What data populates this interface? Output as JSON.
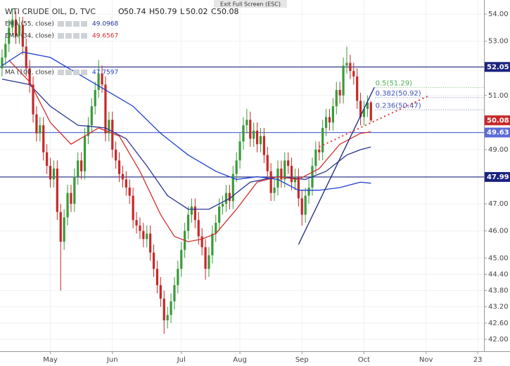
{
  "chart_data": {
    "type": "candlestick",
    "title": "WTI CRUDE OIL, D, TVC",
    "annotation": "Exit Full Screen (ESC)",
    "ohlc_header": [
      {
        "label": "O",
        "path": "open"
      },
      {
        "label": "H",
        "path": "high"
      },
      {
        "label": "L",
        "path": "low"
      },
      {
        "label": "C",
        "path": "close"
      }
    ],
    "up_color": "#3a9a3a",
    "down_color": "#c62828",
    "open": [
      52.0,
      52.4,
      52.9,
      53.5,
      53.8,
      53.2,
      53.6,
      52.8,
      52.0,
      51.4,
      50.3,
      49.6,
      49.9,
      48.9,
      48.4,
      47.9,
      48.3,
      46.7,
      45.6,
      46.5,
      47.4,
      47.0,
      48.0,
      48.6,
      48.2,
      49.5,
      49.9,
      50.6,
      51.2,
      51.8,
      51.4,
      49.6,
      50.1,
      49.0,
      48.6,
      48.1,
      47.9,
      47.6,
      47.3,
      46.4,
      46.2,
      46.0,
      45.7,
      45.9,
      45.2,
      44.6,
      44.0,
      43.5,
      42.7,
      42.9,
      43.4,
      44.0,
      44.6,
      45.3,
      46.0,
      46.6,
      46.9,
      46.4,
      45.8,
      45.4,
      44.6,
      45.1,
      45.9,
      46.3,
      46.9,
      47.0,
      47.4,
      47.1,
      48.1,
      48.6,
      49.3,
      49.9,
      50.1,
      49.4,
      49.7,
      49.2,
      49.5,
      48.8,
      48.2,
      47.4,
      47.6,
      48.3,
      47.9,
      48.6,
      48.4,
      47.8,
      48.0,
      47.2,
      46.6,
      47.3,
      47.6,
      48.4,
      49.0,
      48.9,
      49.8,
      50.2,
      50.0,
      50.6,
      51.2,
      51.0,
      52.1,
      52.2,
      51.9,
      51.7,
      50.8,
      50.2,
      50.5,
      50.74
    ],
    "high": [
      52.7,
      53.2,
      53.8,
      54.2,
      54.1,
      53.9,
      53.9,
      53.1,
      52.3,
      51.7,
      50.6,
      50.2,
      50.2,
      49.2,
      48.7,
      48.6,
      48.6,
      47.0,
      46.8,
      47.7,
      47.7,
      48.3,
      48.9,
      48.9,
      49.8,
      50.2,
      50.9,
      51.5,
      52.3,
      52.1,
      51.7,
      50.4,
      50.4,
      49.3,
      48.9,
      48.4,
      48.2,
      47.9,
      47.6,
      46.7,
      46.5,
      46.3,
      46.2,
      46.2,
      45.5,
      44.9,
      44.3,
      43.8,
      43.2,
      43.7,
      44.3,
      44.9,
      45.6,
      46.3,
      46.9,
      47.2,
      47.2,
      46.7,
      46.1,
      45.7,
      45.4,
      46.2,
      46.6,
      47.2,
      47.3,
      47.7,
      47.7,
      48.4,
      48.9,
      49.6,
      50.2,
      50.5,
      50.4,
      50.0,
      50.0,
      49.8,
      49.8,
      49.1,
      48.5,
      47.9,
      48.6,
      48.6,
      48.9,
      48.9,
      48.7,
      48.3,
      48.3,
      47.5,
      47.6,
      47.9,
      48.7,
      49.3,
      49.3,
      50.1,
      50.5,
      50.5,
      50.9,
      51.5,
      51.5,
      52.4,
      52.8,
      52.5,
      52.2,
      52.0,
      51.1,
      50.8,
      51.0,
      50.79
    ],
    "low": [
      51.7,
      52.1,
      52.6,
      53.2,
      52.9,
      52.9,
      52.5,
      51.7,
      51.1,
      50.0,
      49.3,
      49.3,
      48.6,
      48.1,
      47.6,
      47.6,
      46.4,
      43.8,
      45.3,
      46.2,
      46.7,
      46.7,
      47.7,
      47.9,
      47.9,
      49.2,
      49.6,
      50.3,
      50.9,
      51.1,
      49.3,
      49.3,
      48.7,
      48.3,
      47.8,
      47.6,
      47.3,
      47.0,
      46.1,
      45.9,
      45.7,
      45.4,
      45.4,
      44.9,
      44.3,
      43.7,
      43.2,
      42.2,
      42.4,
      42.6,
      43.1,
      43.7,
      44.3,
      45.0,
      45.7,
      46.3,
      46.1,
      45.5,
      45.1,
      44.2,
      44.3,
      44.8,
      45.6,
      46.0,
      46.6,
      46.7,
      46.8,
      46.8,
      47.8,
      48.3,
      49.0,
      49.6,
      49.1,
      49.1,
      48.9,
      48.9,
      48.5,
      47.9,
      47.1,
      47.1,
      47.3,
      47.6,
      47.6,
      48.1,
      47.5,
      47.5,
      46.9,
      46.2,
      46.3,
      47.0,
      47.3,
      48.1,
      48.6,
      48.6,
      49.5,
      49.7,
      49.7,
      50.3,
      50.7,
      50.7,
      51.8,
      51.6,
      51.4,
      50.5,
      49.9,
      49.9,
      50.2,
      50.02
    ],
    "close": [
      52.4,
      52.9,
      53.5,
      53.8,
      53.2,
      53.6,
      52.8,
      52.0,
      51.4,
      50.3,
      49.6,
      49.9,
      48.9,
      48.4,
      47.9,
      48.3,
      46.7,
      45.6,
      46.5,
      47.4,
      47.0,
      48.0,
      48.6,
      48.2,
      49.5,
      49.9,
      50.6,
      51.2,
      51.8,
      51.4,
      49.6,
      50.1,
      49.0,
      48.6,
      48.1,
      47.9,
      47.6,
      47.3,
      46.4,
      46.2,
      46.0,
      45.7,
      45.9,
      45.2,
      44.6,
      44.0,
      43.5,
      42.7,
      42.9,
      43.4,
      44.0,
      44.6,
      45.3,
      46.0,
      46.6,
      46.9,
      46.4,
      45.8,
      45.4,
      44.6,
      45.1,
      45.9,
      46.3,
      46.9,
      47.0,
      47.4,
      47.1,
      48.1,
      48.6,
      49.3,
      49.9,
      50.1,
      49.4,
      49.7,
      49.2,
      49.5,
      48.8,
      48.2,
      47.4,
      47.6,
      48.3,
      47.9,
      48.6,
      48.4,
      47.8,
      48.0,
      47.2,
      46.6,
      47.3,
      47.6,
      48.4,
      49.0,
      48.9,
      49.8,
      50.2,
      50.0,
      50.6,
      51.2,
      51.0,
      52.1,
      52.2,
      51.9,
      51.7,
      50.8,
      50.2,
      50.5,
      50.74,
      50.08
    ],
    "series": [
      {
        "name": "EMA (55, close)",
        "color": "#283593",
        "last": 49.0968,
        "x": [
          0,
          8,
          14,
          22,
          30,
          36,
          42,
          48,
          54,
          60,
          66,
          72,
          80,
          88,
          94,
          100,
          104,
          107
        ],
        "values": [
          51.6,
          51.4,
          50.6,
          49.9,
          49.8,
          49.4,
          48.4,
          47.3,
          46.8,
          46.8,
          47.2,
          47.8,
          48.0,
          47.9,
          48.2,
          48.8,
          49.0,
          49.0968
        ]
      },
      {
        "name": "EMA (34, close)",
        "color": "#d32f2f",
        "last": 49.6567,
        "x": [
          2,
          8,
          14,
          20,
          28,
          34,
          40,
          46,
          50,
          54,
          58,
          62,
          68,
          74,
          80,
          86,
          92,
          98,
          104,
          107
        ],
        "values": [
          52.3,
          51.5,
          50.0,
          49.2,
          49.8,
          49.5,
          48.2,
          46.6,
          45.8,
          45.6,
          45.7,
          45.9,
          46.8,
          47.8,
          48.0,
          47.9,
          48.3,
          49.2,
          49.6,
          49.6567
        ]
      },
      {
        "name": "MA (100, close)",
        "color": "#1e3fd0",
        "last": 47.7597,
        "x": [
          0,
          6,
          14,
          22,
          30,
          38,
          46,
          54,
          62,
          68,
          74,
          80,
          86,
          92,
          98,
          104,
          107
        ],
        "values": [
          52.1,
          52.6,
          52.4,
          51.8,
          51.2,
          50.6,
          49.6,
          48.8,
          48.2,
          47.9,
          48.0,
          47.9,
          47.5,
          47.5,
          47.6,
          47.8,
          47.7597
        ]
      }
    ],
    "hlines": [
      {
        "value": 52.05,
        "color": "#1a237e"
      },
      {
        "value": 49.63,
        "color": "#5c6bd6"
      },
      {
        "value": 47.99,
        "color": "#1a237e"
      }
    ],
    "fib_levels": [
      {
        "label": "0.5(51.29)",
        "value": 51.29,
        "color": "#4caf50"
      },
      {
        "label": "0.382(50.92)",
        "value": 50.92,
        "color": "#3f51b5"
      },
      {
        "label": "0.236(50.47)",
        "value": 50.47,
        "color": "#3f51b5"
      }
    ],
    "trend_lines": [
      {
        "x": [
          86,
          108
        ],
        "values": [
          45.5,
          51.3
        ],
        "color": "#1a237e",
        "dash": false
      },
      {
        "x": [
          92,
          124
        ],
        "values": [
          49.1,
          51.0
        ],
        "color": "#e53935",
        "dash": true
      }
    ],
    "xlim": [
      -0.6,
      139.8
    ],
    "xticks": [
      {
        "value": 14,
        "label": "May"
      },
      {
        "value": 32,
        "label": "Jun"
      },
      {
        "value": 52,
        "label": "Jul"
      },
      {
        "value": 69,
        "label": "Aug"
      },
      {
        "value": 87,
        "label": "Sep"
      },
      {
        "value": 105,
        "label": "Oct"
      },
      {
        "value": 123,
        "label": "Nov"
      },
      {
        "value": 138,
        "label": "23"
      }
    ],
    "ylim": [
      41.56,
      54.52
    ],
    "yticks": [
      {
        "value": 54,
        "label": "54.00"
      },
      {
        "value": 53,
        "label": "53.00"
      },
      {
        "value": 51,
        "label": "51.00"
      },
      {
        "value": 49,
        "label": "49.00"
      },
      {
        "value": 47,
        "label": "47.00"
      },
      {
        "value": 46,
        "label": "46.00"
      },
      {
        "value": 45,
        "label": "45.00"
      },
      {
        "value": 44.4,
        "label": "44.40"
      },
      {
        "value": 43.8,
        "label": "43.80"
      },
      {
        "value": 43.2,
        "label": "43.20"
      },
      {
        "value": 42.6,
        "label": "42.60"
      },
      {
        "value": 42,
        "label": "42.00"
      }
    ],
    "grid": true
  }
}
